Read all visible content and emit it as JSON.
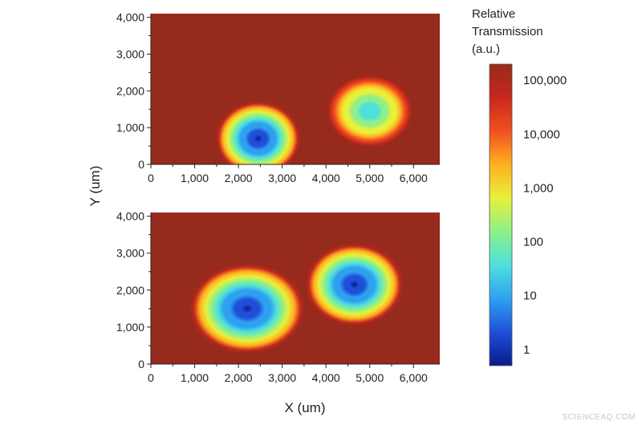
{
  "chart_data": [
    {
      "type": "heatmap",
      "panel": "top",
      "xlabel": "",
      "ylabel": "Y (um)",
      "xlim": [
        0,
        6600
      ],
      "ylim": [
        0,
        4100
      ],
      "xticks": [
        0,
        1000,
        2000,
        3000,
        4000,
        5000,
        6000
      ],
      "xtick_labels": [
        "0",
        "1,000",
        "2,000",
        "3,000",
        "4,000",
        "5,000",
        "6,000"
      ],
      "yticks": [
        0,
        1000,
        2000,
        3000,
        4000
      ],
      "ytick_labels": [
        "0",
        "1,000",
        "2,000",
        "3,000",
        "4,000"
      ],
      "colorscale": "log",
      "background_value": 100000,
      "features": [
        {
          "x": 2450,
          "y": 700,
          "rx": 1000,
          "ry": 1050,
          "min_value": 1
        },
        {
          "x": 5000,
          "y": 1450,
          "rx": 1000,
          "ry": 1000,
          "min_value": 20
        }
      ]
    },
    {
      "type": "heatmap",
      "panel": "bottom",
      "xlabel": "X (um)",
      "ylabel": "Y (um)",
      "xlim": [
        0,
        6600
      ],
      "ylim": [
        0,
        4100
      ],
      "xticks": [
        0,
        1000,
        2000,
        3000,
        4000,
        5000,
        6000
      ],
      "xtick_labels": [
        "0",
        "1,000",
        "2,000",
        "3,000",
        "4,000",
        "5,000",
        "6,000"
      ],
      "yticks": [
        0,
        1000,
        2000,
        3000,
        4000
      ],
      "ytick_labels": [
        "0",
        "1,000",
        "2,000",
        "3,000",
        "4,000"
      ],
      "colorscale": "log",
      "background_value": 100000,
      "features": [
        {
          "x": 2200,
          "y": 1500,
          "rx": 1350,
          "ry": 1250,
          "min_value": 1
        },
        {
          "x": 4650,
          "y": 2150,
          "rx": 1150,
          "ry": 1150,
          "min_value": 1
        }
      ]
    }
  ],
  "colorbar": {
    "title_lines": [
      "Relative",
      "Transmission",
      "(a.u.)"
    ],
    "scale": "log",
    "range": [
      0.5,
      200000
    ],
    "ticks": [
      100000,
      10000,
      1000,
      100,
      10,
      1
    ],
    "tick_labels": [
      "100,000",
      "10,000",
      "1,000",
      "100",
      "10",
      "1"
    ],
    "colors": [
      "#0a1a8c",
      "#1f4fd8",
      "#2fa0f0",
      "#4ee0dc",
      "#8df08a",
      "#e8f03a",
      "#ffb020",
      "#f05020",
      "#c8281c",
      "#962a1c"
    ]
  },
  "watermark": "SCIENCEAQ.COM"
}
